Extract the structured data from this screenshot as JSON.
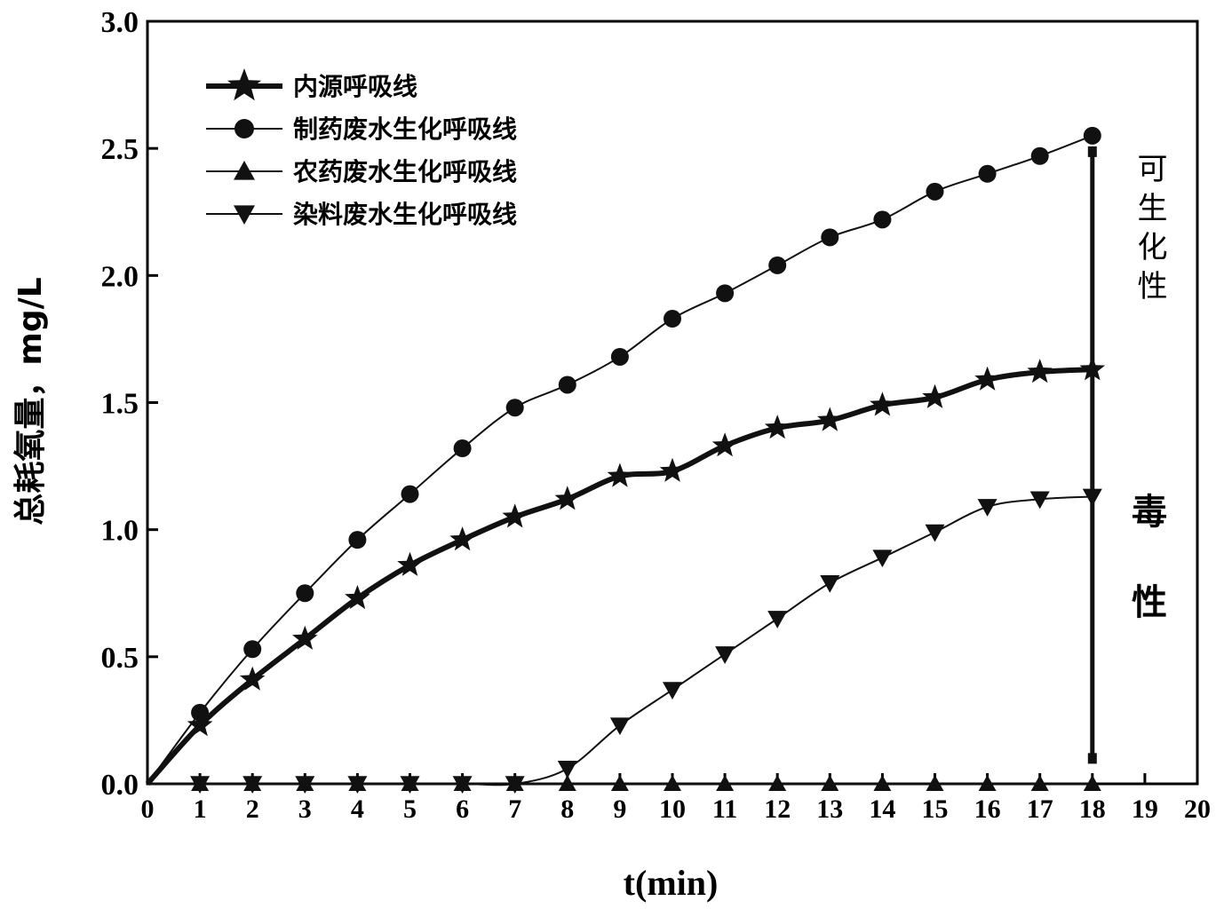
{
  "chart_data": {
    "type": "line",
    "title": "",
    "xlabel": "t(min)",
    "ylabel": "总耗氧量，mg/L",
    "xlim": [
      0,
      20
    ],
    "ylim": [
      0,
      3.0
    ],
    "x_ticks": [
      "0",
      "1",
      "2",
      "3",
      "4",
      "5",
      "6",
      "7",
      "8",
      "9",
      "10",
      "11",
      "12",
      "13",
      "14",
      "15",
      "16",
      "17",
      "18",
      "19",
      "20"
    ],
    "y_ticks": [
      "0.0",
      "0.5",
      "1.0",
      "1.5",
      "2.0",
      "2.5",
      "3.0"
    ],
    "grid": false,
    "legend_position": "top-left",
    "series": [
      {
        "name": "内源呼吸线",
        "marker": "star",
        "line_width": "thick",
        "x": [
          0,
          1,
          2,
          3,
          4,
          5,
          6,
          7,
          8,
          9,
          10,
          11,
          12,
          13,
          14,
          15,
          16,
          17,
          18
        ],
        "y": [
          0,
          0.23,
          0.41,
          0.57,
          0.73,
          0.86,
          0.96,
          1.05,
          1.12,
          1.21,
          1.23,
          1.33,
          1.4,
          1.43,
          1.49,
          1.52,
          1.59,
          1.62,
          1.63
        ]
      },
      {
        "name": "制药废水生化呼吸线",
        "marker": "circle",
        "line_width": "thin",
        "x": [
          0,
          1,
          2,
          3,
          4,
          5,
          6,
          7,
          8,
          9,
          10,
          11,
          12,
          13,
          14,
          15,
          16,
          17,
          18
        ],
        "y": [
          0,
          0.28,
          0.53,
          0.75,
          0.96,
          1.14,
          1.32,
          1.48,
          1.57,
          1.68,
          1.83,
          1.93,
          2.04,
          2.15,
          2.22,
          2.33,
          2.4,
          2.47,
          2.55
        ]
      },
      {
        "name": "农药废水生化呼吸线",
        "marker": "triangle-up",
        "line_width": "thin",
        "x": [
          0,
          1,
          2,
          3,
          4,
          5,
          6,
          7,
          8,
          9,
          10,
          11,
          12,
          13,
          14,
          15,
          16,
          17,
          18
        ],
        "y": [
          0,
          0,
          0,
          0,
          0,
          0,
          0,
          0,
          0,
          0,
          0,
          0,
          0,
          0,
          0,
          0,
          0,
          0,
          0
        ]
      },
      {
        "name": "染料废水生化呼吸线",
        "marker": "triangle-down",
        "line_width": "thin",
        "x": [
          0,
          1,
          2,
          3,
          4,
          5,
          6,
          7,
          8,
          9,
          10,
          11,
          12,
          13,
          14,
          15,
          16,
          17,
          18
        ],
        "y": [
          0,
          0,
          0,
          0,
          0,
          0,
          0,
          0,
          0.06,
          0.23,
          0.37,
          0.51,
          0.65,
          0.79,
          0.89,
          0.99,
          1.09,
          1.12,
          1.13
        ]
      }
    ],
    "vertical_line": {
      "x": 18,
      "y_from": 0.1,
      "y_to": 2.48
    },
    "annotations": {
      "upper": "可生化性",
      "lower_top": "毒",
      "lower_bottom": "性"
    }
  }
}
